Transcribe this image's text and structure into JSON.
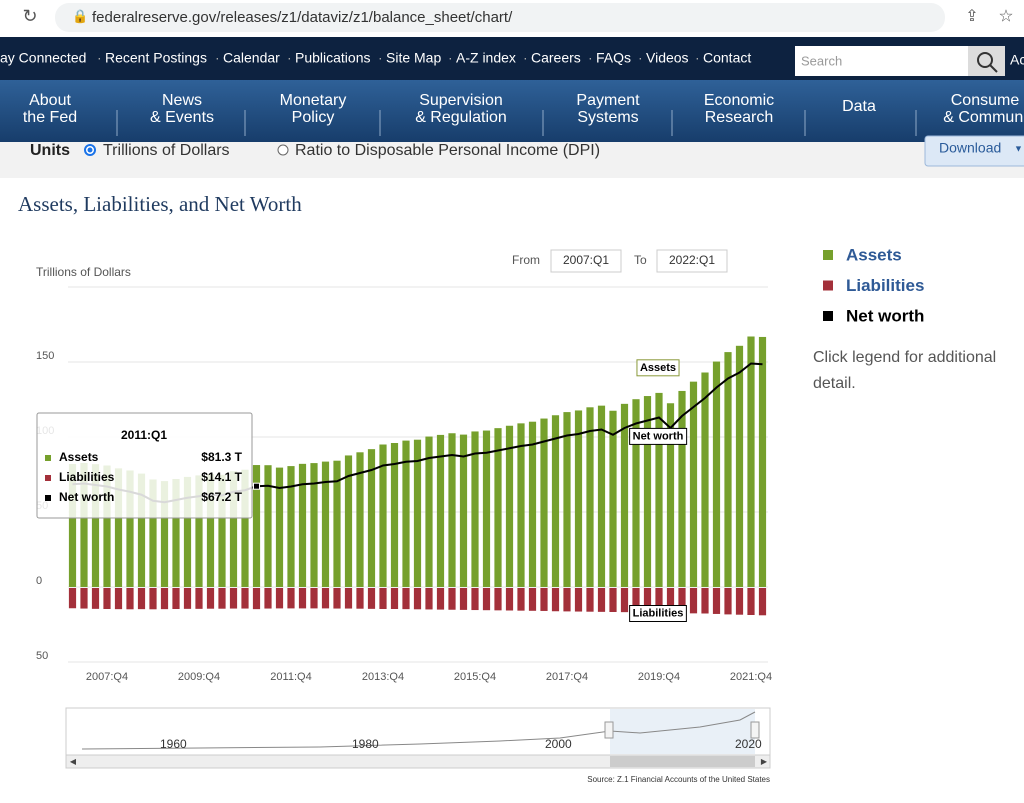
{
  "browser": {
    "url": "federalreserve.gov/releases/z1/dataviz/z1/balance_sheet/chart/"
  },
  "top_nav": {
    "links": [
      "ay Connected",
      "Recent Postings",
      "Calendar",
      "Publications",
      "Site Map",
      "A-Z index",
      "Careers",
      "FAQs",
      "Videos",
      "Contact"
    ],
    "search_placeholder": "Search",
    "cut_text": "Ac"
  },
  "main_nav": [
    [
      "About",
      "the Fed"
    ],
    [
      "News",
      "& Events"
    ],
    [
      "Monetary",
      "Policy"
    ],
    [
      "Supervision",
      "& Regulation"
    ],
    [
      "Payment",
      "Systems"
    ],
    [
      "Economic",
      "Research"
    ],
    [
      "Data"
    ],
    [
      "Consume",
      "& Communi"
    ]
  ],
  "units": {
    "label": "Units",
    "options": [
      "Trillions of Dollars",
      "Ratio to Disposable Personal Income (DPI)"
    ],
    "download": "Download"
  },
  "page_title": "Assets, Liabilities, and Net Worth",
  "range": {
    "from_label": "From",
    "from": "2007:Q1",
    "to_label": "To",
    "to": "2022:Q1"
  },
  "legend_note": "Click legend for additional detail.",
  "navigator": {
    "labels": [
      "1960",
      "1980",
      "2000",
      "2020"
    ]
  },
  "source": "Source: Z.1 Financial Accounts of the United States",
  "chart_data": {
    "type": "bar",
    "y_label": "Trillions of Dollars",
    "categories": [
      null,
      null,
      null,
      "2007:Q4",
      null,
      null,
      null,
      null,
      null,
      null,
      null,
      "2009:Q4",
      null,
      null,
      null,
      null,
      null,
      null,
      null,
      "2011:Q4",
      null,
      null,
      null,
      null,
      null,
      null,
      null,
      "2013:Q4",
      null,
      null,
      null,
      null,
      null,
      null,
      null,
      "2015:Q4",
      null,
      null,
      null,
      null,
      null,
      null,
      null,
      "2017:Q4",
      null,
      null,
      null,
      null,
      null,
      null,
      null,
      "2019:Q4",
      null,
      null,
      null,
      null,
      null,
      null,
      null,
      "2021:Q4",
      null
    ],
    "series": [
      {
        "name": "Assets",
        "color": "#76a02c",
        "kind": "bar",
        "values": [
          82.0,
          82.7,
          81.9,
          81.0,
          79.1,
          77.7,
          75.6,
          71.7,
          70.6,
          72.0,
          73.4,
          74.4,
          75.3,
          74.8,
          77.2,
          78.2,
          81.3,
          81.2,
          79.6,
          80.6,
          82.1,
          82.6,
          83.6,
          84.2,
          87.7,
          89.8,
          91.9,
          95.0,
          96.0,
          97.6,
          98.2,
          100.3,
          101.4,
          102.5,
          101.6,
          103.7,
          104.3,
          105.9,
          107.5,
          109.1,
          110.2,
          112.3,
          114.5,
          116.6,
          117.7,
          119.8,
          120.9,
          117.5,
          122.1,
          125.2,
          127.3,
          129.4,
          122.5,
          130.7,
          136.9,
          143.0,
          150.3,
          156.6,
          160.8,
          167.0,
          166.7
        ]
      },
      {
        "name": "Liabilities",
        "color": "#a3303a",
        "kind": "bar",
        "values": [
          -13.5,
          -13.7,
          -13.9,
          -14.0,
          -14.1,
          -14.2,
          -14.1,
          -14.2,
          -14.1,
          -14.0,
          -13.9,
          -13.9,
          -13.8,
          -13.8,
          -13.7,
          -13.7,
          -14.1,
          -13.7,
          -13.6,
          -13.6,
          -13.6,
          -13.6,
          -13.6,
          -13.7,
          -13.7,
          -13.8,
          -13.9,
          -14.0,
          -14.0,
          -14.1,
          -14.2,
          -14.3,
          -14.4,
          -14.5,
          -14.6,
          -14.7,
          -14.8,
          -14.9,
          -15.0,
          -15.1,
          -15.2,
          -15.3,
          -15.5,
          -15.6,
          -15.7,
          -15.8,
          -15.9,
          -16.0,
          -16.1,
          -16.2,
          -16.3,
          -16.4,
          -16.5,
          -16.7,
          -16.9,
          -17.0,
          -17.3,
          -17.6,
          -17.8,
          -18.0,
          -18.2
        ]
      },
      {
        "name": "Net worth",
        "color": "#000000",
        "kind": "line",
        "values": [
          68.5,
          69.0,
          68.0,
          67.0,
          65.0,
          63.5,
          61.5,
          57.5,
          56.5,
          58.0,
          59.5,
          60.5,
          61.5,
          61.0,
          63.5,
          64.5,
          67.2,
          67.5,
          66.0,
          67.0,
          68.5,
          69.0,
          70.0,
          70.5,
          74.0,
          76.0,
          78.0,
          81.0,
          82.0,
          83.5,
          84.0,
          86.0,
          87.0,
          88.0,
          87.0,
          89.0,
          89.5,
          91.0,
          92.5,
          94.0,
          95.0,
          97.0,
          99.0,
          101.0,
          102.0,
          104.0,
          105.0,
          101.5,
          106.0,
          109.0,
          111.0,
          113.0,
          106.0,
          114.0,
          120.0,
          126.0,
          133.0,
          139.0,
          143.0,
          149.0,
          148.5
        ]
      }
    ],
    "ylim": [
      -50,
      200
    ],
    "yticks": [
      {
        "value": -50,
        "label": "50"
      },
      0,
      50,
      100,
      150
    ],
    "grid": true,
    "annotations": [
      "Assets",
      "Net worth",
      "Liabilities"
    ],
    "tooltip": {
      "title": "2011:Q1",
      "rows": [
        [
          "Assets",
          "$81.3 T"
        ],
        [
          "Liabilities",
          "$14.1 T"
        ],
        [
          "Net worth",
          "$67.2 T"
        ]
      ]
    }
  }
}
